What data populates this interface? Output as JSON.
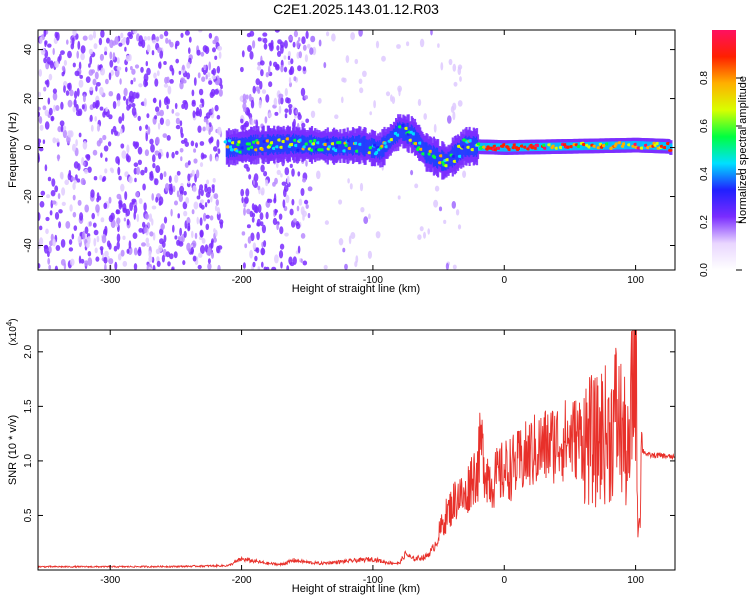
{
  "figure_title": "C2E1.2025.143.01.12.R03",
  "colors": {
    "snr_line": "#e8302a",
    "spectrogram_dots": "#6a1fe0",
    "axis": "#000000"
  },
  "chart_data": [
    {
      "type": "heatmap",
      "title": "C2E1.2025.143.01.12.R03",
      "xlabel": "Height of straight line (km)",
      "ylabel": "Frequency (Hz)",
      "xlim": [
        -355,
        130
      ],
      "ylim": [
        -50,
        48
      ],
      "xticks": [
        -300,
        -200,
        -100,
        0,
        100
      ],
      "yticks": [
        -40,
        -20,
        0,
        20,
        40
      ],
      "colorbar": {
        "label": "Normalized spectral amplitude",
        "range": [
          0.0,
          1.0
        ],
        "ticks": [
          "0.0",
          "0.2",
          "0.4",
          "0.6",
          "0.8"
        ],
        "tick_values": [
          0.0,
          0.2,
          0.4,
          0.6,
          0.8
        ],
        "colormap": [
          "#ffffff",
          "#e9d6ff",
          "#7a2cff",
          "#2020ff",
          "#00e0ff",
          "#00ff40",
          "#d8ff00",
          "#ffb000",
          "#ff2000",
          "#ff1060"
        ]
      },
      "signal_track": [
        {
          "x": -210,
          "y": 0.0
        },
        {
          "x": -190,
          "y": 1.0
        },
        {
          "x": -160,
          "y": 1.5
        },
        {
          "x": -130,
          "y": 0.5
        },
        {
          "x": -110,
          "y": 1.0
        },
        {
          "x": -95,
          "y": -1.0
        },
        {
          "x": -80,
          "y": 7.0
        },
        {
          "x": -70,
          "y": 5.0
        },
        {
          "x": -60,
          "y": -2.0
        },
        {
          "x": -45,
          "y": -6.0
        },
        {
          "x": -30,
          "y": 0.5
        },
        {
          "x": 0,
          "y": 0.0
        },
        {
          "x": 50,
          "y": 0.5
        },
        {
          "x": 100,
          "y": 1.0
        },
        {
          "x": 125,
          "y": 0.5
        }
      ],
      "noise_regions": [
        {
          "x_from": -355,
          "x_to": -215,
          "level": "dense"
        },
        {
          "x_from": -200,
          "x_to": -150,
          "level": "dense"
        },
        {
          "x_from": -150,
          "x_to": -30,
          "level": "sparse"
        }
      ]
    },
    {
      "type": "line",
      "xlabel": "Height of straight line (km)",
      "ylabel": "SNR (10 * v/v)",
      "y_multiplier": "(x10",
      "y_multiplier_exp": "4",
      "y_multiplier_close": ")",
      "xlim": [
        -355,
        130
      ],
      "ylim": [
        0,
        22000
      ],
      "xticks": [
        -300,
        -200,
        -100,
        0,
        100
      ],
      "yticks": [
        5000,
        10000,
        15000,
        20000
      ],
      "ytick_labels": [
        "0.5",
        "1.0",
        "1.5",
        "2.0"
      ],
      "series": [
        {
          "x": [
            -355,
            -300,
            -250,
            -210,
            -200,
            -190,
            -180,
            -170,
            -160,
            -150,
            -140,
            -120,
            -100,
            -90,
            -80,
            -75,
            -70,
            -60,
            -55,
            -50,
            -45,
            -40,
            -35,
            -30,
            -25,
            -20,
            -18,
            -15,
            -10,
            -5,
            0,
            10,
            20,
            30,
            40,
            50,
            60,
            70,
            75,
            80,
            85,
            90,
            95,
            98,
            100,
            102,
            105,
            110,
            120,
            130
          ],
          "values": [
            300,
            300,
            320,
            400,
            1000,
            800,
            600,
            500,
            900,
            700,
            600,
            800,
            1000,
            700,
            600,
            1500,
            1000,
            1200,
            1800,
            3000,
            4500,
            5500,
            6500,
            6000,
            8000,
            8500,
            11000,
            9000,
            7500,
            8000,
            8500,
            9000,
            10000,
            10500,
            11000,
            11200,
            11500,
            11000,
            12000,
            11500,
            13500,
            12000,
            9000,
            17000,
            19000,
            3000,
            11000,
            10500,
            10500,
            10300
          ]
        }
      ]
    }
  ]
}
